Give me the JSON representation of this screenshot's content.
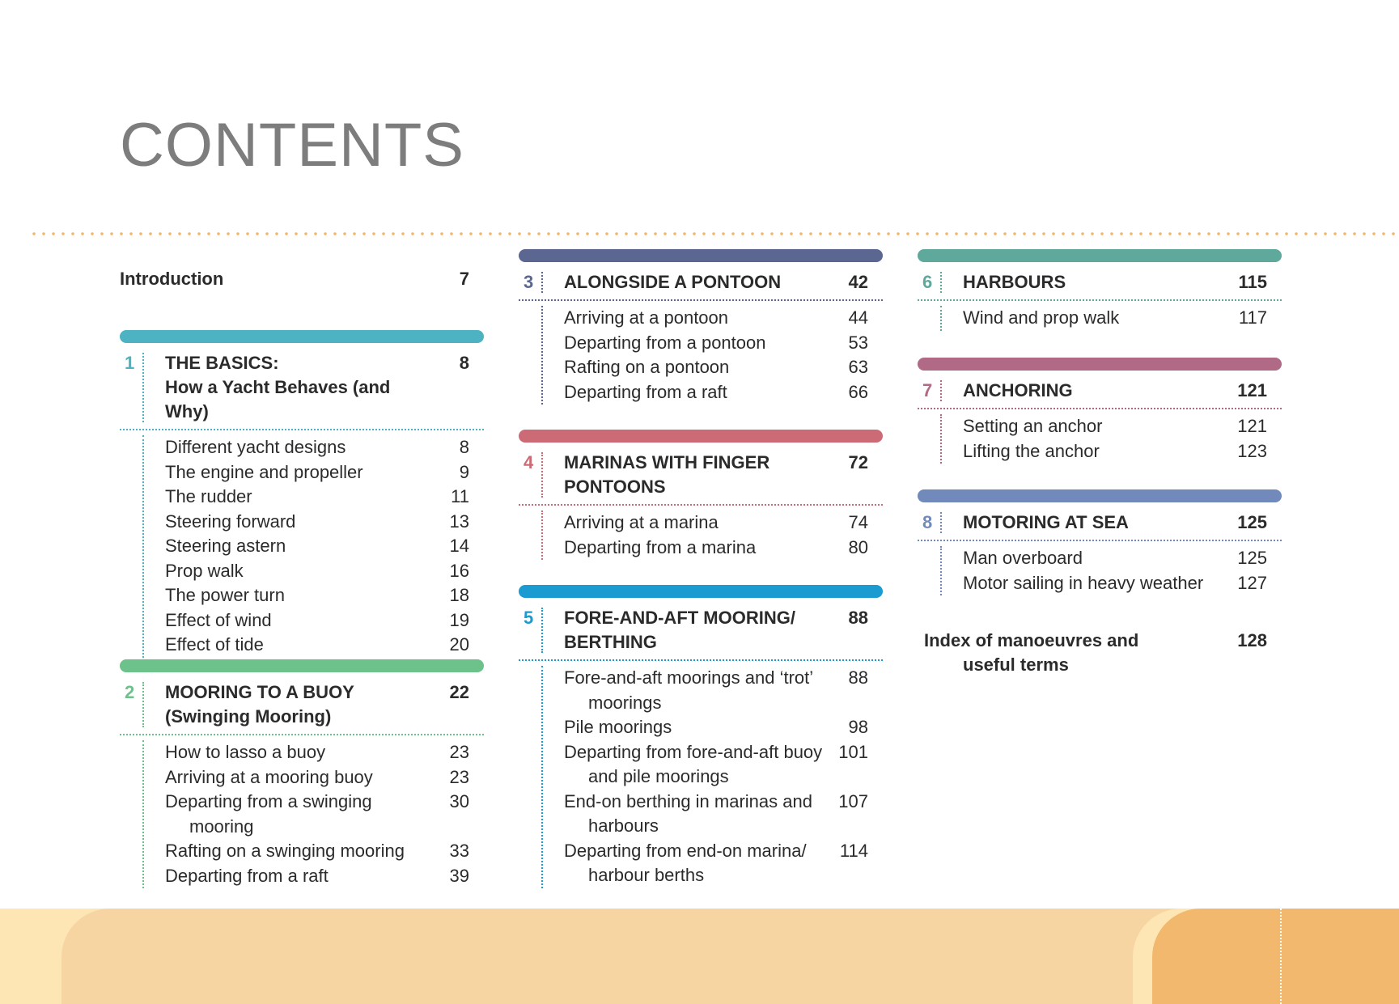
{
  "title": "CONTENTS",
  "intro": {
    "label": "Introduction",
    "page": "7"
  },
  "sections": {
    "s1": {
      "num": "1",
      "line1": "THE BASICS:",
      "line2": "How a Yacht Behaves (and Why)",
      "page": "8",
      "color": "#4db3c3",
      "items": [
        {
          "label": "Different yacht designs",
          "page": "8"
        },
        {
          "label": "The engine and propeller",
          "page": "9"
        },
        {
          "label": "The rudder",
          "page": "11"
        },
        {
          "label": "Steering forward",
          "page": "13"
        },
        {
          "label": "Steering astern",
          "page": "14"
        },
        {
          "label": "Prop walk",
          "page": "16"
        },
        {
          "label": "The power turn",
          "page": "18"
        },
        {
          "label": "Effect of wind",
          "page": "19"
        },
        {
          "label": "Effect of tide",
          "page": "20"
        }
      ]
    },
    "s2": {
      "num": "2",
      "line1": "MOORING TO A BUOY",
      "line2": "(Swinging Mooring)",
      "page": "22",
      "color": "#6cc28a",
      "items": [
        {
          "label": "How to lasso a buoy",
          "page": "23"
        },
        {
          "label": "Arriving at a mooring buoy",
          "page": "23"
        },
        {
          "label": "Departing from a swinging",
          "cont": "mooring",
          "page": "30"
        },
        {
          "label": "Rafting on a swinging mooring",
          "page": "33"
        },
        {
          "label": "Departing from a raft",
          "page": "39"
        }
      ]
    },
    "s3": {
      "num": "3",
      "line1": "ALONGSIDE A PONTOON",
      "line2": "",
      "page": "42",
      "color": "#5b6791",
      "items": [
        {
          "label": "Arriving at a pontoon",
          "page": "44"
        },
        {
          "label": "Departing from a pontoon",
          "page": "53"
        },
        {
          "label": "Rafting on a pontoon",
          "page": "63"
        },
        {
          "label": "Departing from a raft",
          "page": "66"
        }
      ]
    },
    "s4": {
      "num": "4",
      "line1": "MARINAS WITH FINGER",
      "line2": "PONTOONS",
      "page": "72",
      "color": "#cc6b76",
      "items": [
        {
          "label": "Arriving at a marina",
          "page": "74"
        },
        {
          "label": "Departing from a marina",
          "page": "80"
        }
      ]
    },
    "s5": {
      "num": "5",
      "line1": "FORE-AND-AFT MOORING/",
      "line2": "BERTHING",
      "page": "88",
      "color": "#1a9bd1",
      "items": [
        {
          "label": "Fore-and-aft moorings and ‘trot’",
          "cont": "moorings",
          "page": "88"
        },
        {
          "label": "Pile moorings",
          "page": "98"
        },
        {
          "label": "Departing from fore-and-aft buoy",
          "cont": "and pile moorings",
          "page": "101"
        },
        {
          "label": "End-on berthing in marinas and",
          "cont": "harbours",
          "page": "107"
        },
        {
          "label": "Departing from end-on marina/",
          "cont": "harbour berths",
          "page": "114"
        }
      ]
    },
    "s6": {
      "num": "6",
      "line1": "HARBOURS",
      "line2": "",
      "page": "115",
      "color": "#5ea99b",
      "items": [
        {
          "label": "Wind and prop walk",
          "page": "117"
        }
      ]
    },
    "s7": {
      "num": "7",
      "line1": "ANCHORING",
      "line2": "",
      "page": "121",
      "color": "#b06a86",
      "items": [
        {
          "label": "Setting an anchor",
          "page": "121"
        },
        {
          "label": "Lifting the anchor",
          "page": "123"
        }
      ]
    },
    "s8": {
      "num": "8",
      "line1": "MOTORING AT SEA",
      "line2": "",
      "page": "125",
      "color": "#7189bb",
      "items": [
        {
          "label": "Man overboard",
          "page": "125"
        },
        {
          "label": "Motor sailing in heavy weather",
          "page": "127"
        }
      ]
    }
  },
  "index": {
    "line1": "Index of manoeuvres and",
    "line2": "useful terms",
    "page": "128"
  }
}
